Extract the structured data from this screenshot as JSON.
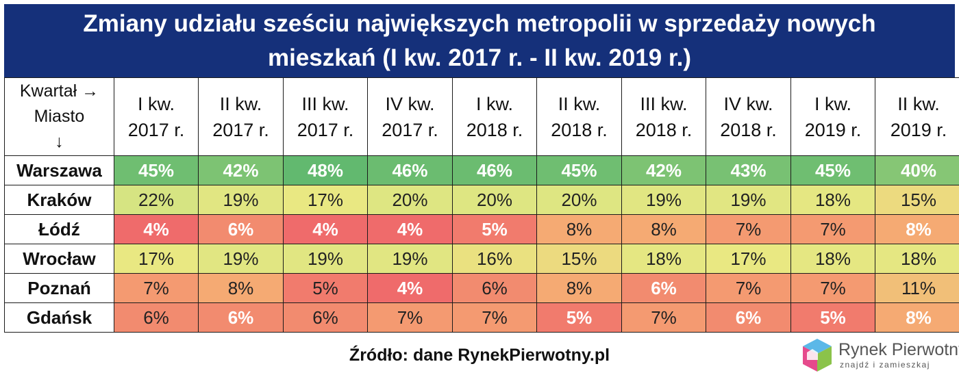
{
  "title": {
    "line1": "Zmiany udziału sześciu największych metropolii w sprzedaży nowych",
    "line2": "mieszkań (I kw. 2017 r. - II kw. 2019 r.)"
  },
  "corner": {
    "line1": "Kwartał →",
    "line2": "Miasto",
    "line3": "↓"
  },
  "footer": "Źródło: dane RynekPierwotny.pl",
  "logo": {
    "name": "Rynek Pierwotny",
    "tagline": "znajdź i zamieszkaj",
    "icon": "house-cube-icon"
  },
  "colors": {
    "title_bg": "#15307a",
    "high": "#62b96f",
    "mid": "#e9e882",
    "low": "#ef6b6b"
  },
  "chart_data": {
    "type": "table",
    "columns": [
      {
        "line1": "I kw.",
        "line2": "2017 r."
      },
      {
        "line1": "II kw.",
        "line2": "2017 r."
      },
      {
        "line1": "III kw.",
        "line2": "2017 r."
      },
      {
        "line1": "IV kw.",
        "line2": "2017 r."
      },
      {
        "line1": "I kw.",
        "line2": "2018 r."
      },
      {
        "line1": "II kw.",
        "line2": "2018 r."
      },
      {
        "line1": "III kw.",
        "line2": "2018 r."
      },
      {
        "line1": "IV kw.",
        "line2": "2018 r."
      },
      {
        "line1": "I kw.",
        "line2": "2019 r."
      },
      {
        "line1": "II kw.",
        "line2": "2019 r."
      }
    ],
    "rows": [
      {
        "city": "Warszawa",
        "values": [
          45,
          42,
          48,
          46,
          46,
          45,
          42,
          43,
          45,
          40
        ],
        "labels": [
          "45%",
          "42%",
          "48%",
          "46%",
          "46%",
          "45%",
          "42%",
          "43%",
          "45%",
          "40%"
        ]
      },
      {
        "city": "Kraków",
        "values": [
          22,
          19,
          17,
          20,
          20,
          20,
          19,
          19,
          18,
          15
        ],
        "labels": [
          "22%",
          "19%",
          "17%",
          "20%",
          "20%",
          "20%",
          "19%",
          "19%",
          "18%",
          "15%"
        ]
      },
      {
        "city": "Łódź",
        "values": [
          4,
          6,
          4,
          4,
          5,
          8,
          8,
          7,
          7,
          8
        ],
        "labels": [
          "4%",
          "6%",
          "4%",
          "4%",
          "5%",
          "8%",
          "8%",
          "7%",
          "7%",
          "8%"
        ]
      },
      {
        "city": "Wrocław",
        "values": [
          17,
          19,
          19,
          19,
          16,
          15,
          18,
          17,
          18,
          18
        ],
        "labels": [
          "17%",
          "19%",
          "19%",
          "19%",
          "16%",
          "15%",
          "18%",
          "17%",
          "18%",
          "18%"
        ]
      },
      {
        "city": "Poznań",
        "values": [
          7,
          8,
          5,
          4,
          6,
          8,
          6,
          7,
          7,
          11
        ],
        "labels": [
          "7%",
          "8%",
          "5%",
          "4%",
          "6%",
          "8%",
          "6%",
          "7%",
          "7%",
          "11%"
        ]
      },
      {
        "city": "Gdańsk",
        "values": [
          6,
          6,
          6,
          7,
          7,
          5,
          7,
          6,
          5,
          8
        ],
        "labels": [
          "6%",
          "6%",
          "6%",
          "7%",
          "7%",
          "5%",
          "7%",
          "6%",
          "5%",
          "8%"
        ]
      }
    ],
    "bold_white_cells": [
      [
        0,
        1,
        2,
        3,
        4,
        5,
        6,
        7,
        8,
        9
      ],
      [],
      [
        0,
        1,
        2,
        3,
        4,
        9
      ],
      [],
      [
        3,
        6
      ],
      [
        1,
        5,
        7,
        8,
        9
      ]
    ]
  }
}
